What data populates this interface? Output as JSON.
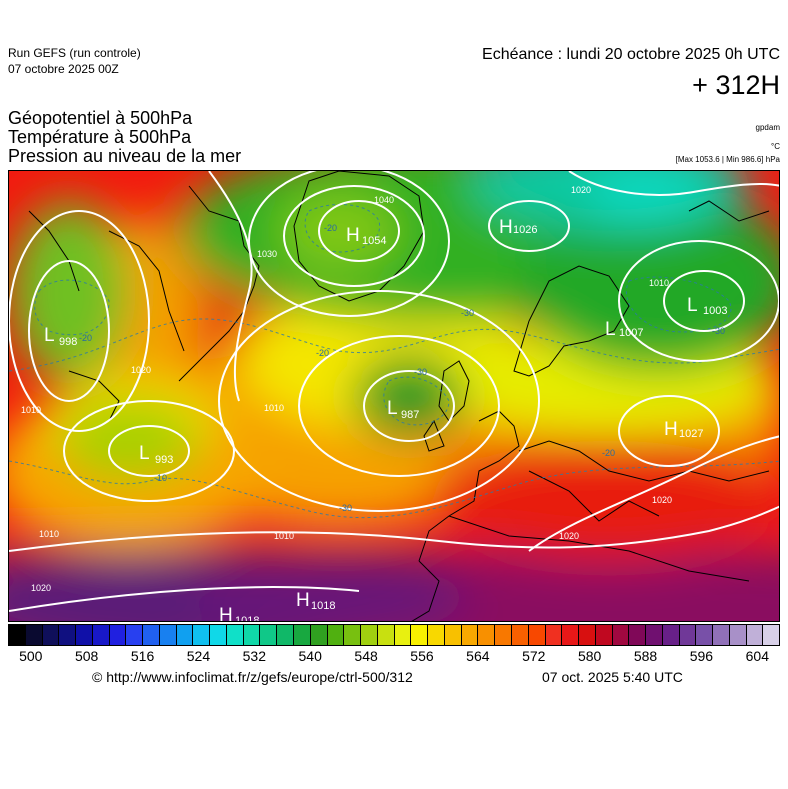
{
  "header": {
    "run_title": "Run GEFS (run controle)",
    "run_date": "07 octobre 2025 00Z",
    "echeance": "Echéance : lundi 20 octobre 2025 0h UTC",
    "lead_time": "+ 312H"
  },
  "parameters": [
    "Géopotentiel à 500hPa",
    "Température à 500hPa",
    "Pression au niveau de la mer"
  ],
  "units": {
    "geopotential": "gpdam",
    "temperature": "°C",
    "pressure": "[Max 1053.6 | Min 986.6] hPa"
  },
  "map": {
    "pressure_centers": [
      {
        "type": "H",
        "value": "1054"
      },
      {
        "type": "H",
        "value": "1026"
      },
      {
        "type": "L",
        "value": "998"
      },
      {
        "type": "L",
        "value": "993"
      },
      {
        "type": "L",
        "value": "987"
      },
      {
        "type": "L",
        "value": "1007"
      },
      {
        "type": "L",
        "value": "1003"
      },
      {
        "type": "H",
        "value": "1027"
      },
      {
        "type": "H",
        "value": "1018"
      },
      {
        "type": "H",
        "value": "1018"
      }
    ],
    "isobar_labels": [
      "1040",
      "1030",
      "1020",
      "1010",
      "1010",
      "1010",
      "1020",
      "1020",
      "1010",
      "1020",
      "1020",
      "1010"
    ],
    "temperature_labels": [
      "-20",
      "-30",
      "-20",
      "-30",
      "-20",
      "-30",
      "-20",
      "-30",
      "-10"
    ]
  },
  "colorbar": {
    "labels": [
      "500",
      "508",
      "516",
      "524",
      "532",
      "540",
      "548",
      "556",
      "564",
      "572",
      "580",
      "588",
      "596",
      "604"
    ],
    "colors": [
      "#000000",
      "#0a0a30",
      "#0f0f5a",
      "#101080",
      "#1010a8",
      "#1818c8",
      "#2020e0",
      "#2840f0",
      "#2060f0",
      "#1880f0",
      "#10a0f0",
      "#10c0f0",
      "#10d8e8",
      "#10e0c8",
      "#10d8a8",
      "#10c888",
      "#10b868",
      "#18a840",
      "#30a020",
      "#50b010",
      "#78c010",
      "#a0d010",
      "#c8e010",
      "#e8f010",
      "#f8f000",
      "#f8d800",
      "#f8c000",
      "#f8a800",
      "#f89000",
      "#f87800",
      "#f86000",
      "#f84800",
      "#f03020",
      "#e81818",
      "#d81010",
      "#c00820",
      "#a00840",
      "#800858",
      "#701070",
      "#682088",
      "#703898",
      "#7850a8",
      "#9070b8",
      "#a890c8",
      "#c0b0d8",
      "#d8d0e8"
    ]
  },
  "footer": {
    "credit": "© http://www.infoclimat.fr/z/gefs/europe/ctrl-500/312",
    "timestamp": "07 oct. 2025  5:40 UTC"
  }
}
